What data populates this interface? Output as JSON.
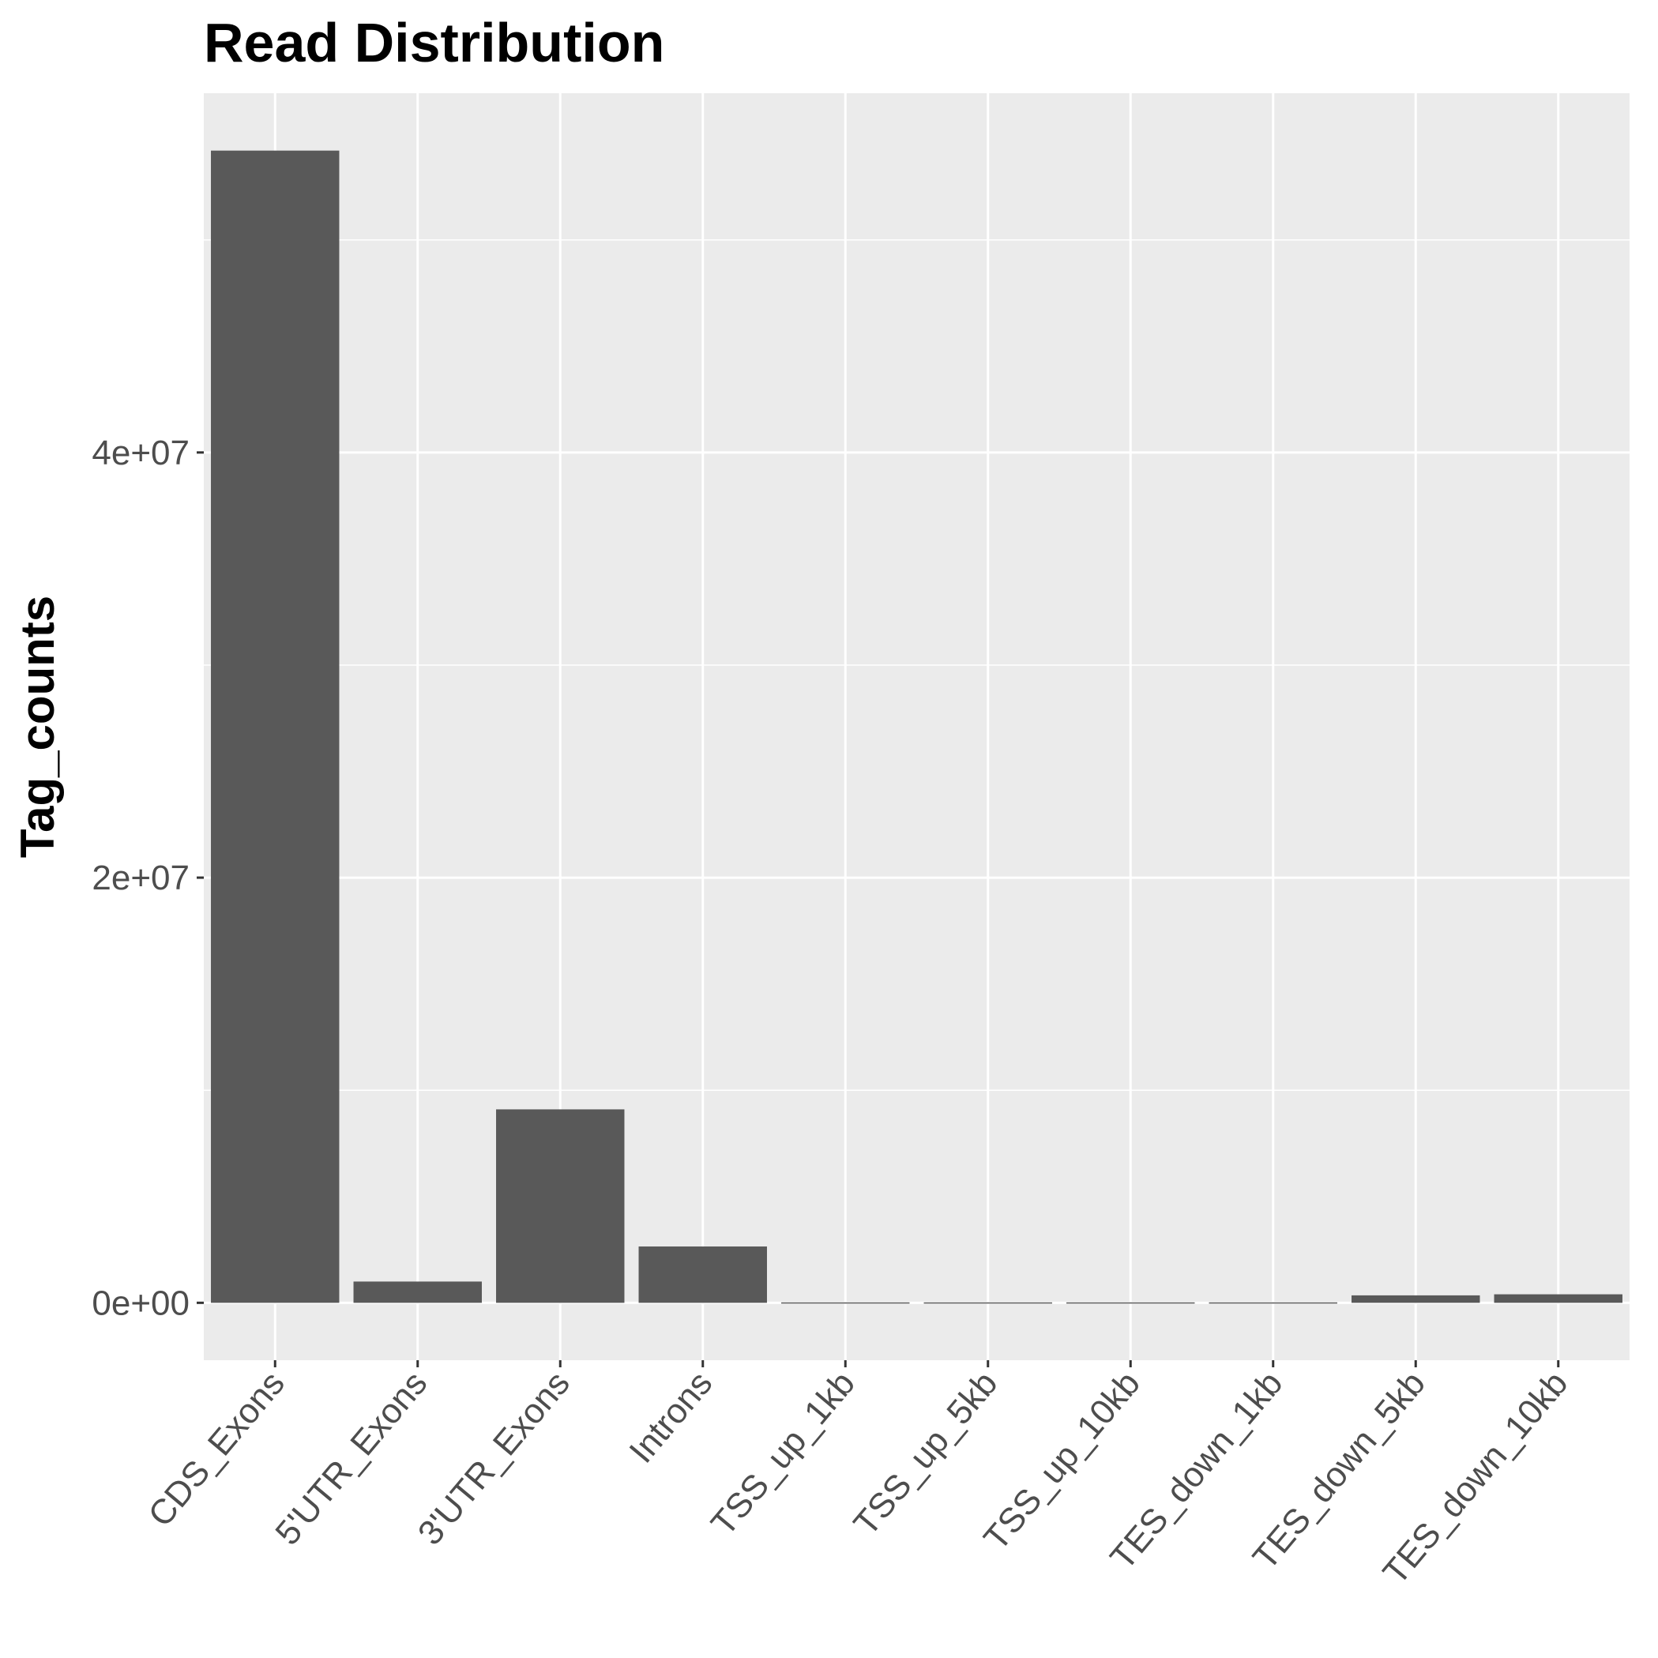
{
  "chart_data": {
    "type": "bar",
    "title": "Read Distribution",
    "xlabel": "",
    "ylabel": "Tag_counts",
    "categories": [
      "CDS_Exons",
      "5'UTR_Exons",
      "3'UTR_Exons",
      "Introns",
      "TSS_up_1kb",
      "TSS_up_5kb",
      "TSS_up_10kb",
      "TES_down_1kb",
      "TES_down_5kb",
      "TES_down_10kb"
    ],
    "values": [
      54200000,
      1000000,
      9100000,
      2650000,
      20000,
      20000,
      20000,
      20000,
      350000,
      400000
    ],
    "ylim": [
      -2700000,
      56900000
    ],
    "yticks": [
      0,
      20000000,
      40000000
    ],
    "ytick_labels": [
      "0e+00",
      "2e+07",
      "4e+07"
    ],
    "grid": true,
    "legend": "none",
    "colors": {
      "bar": "#595959",
      "panel": "#ebebeb",
      "grid": "#ffffff"
    }
  }
}
